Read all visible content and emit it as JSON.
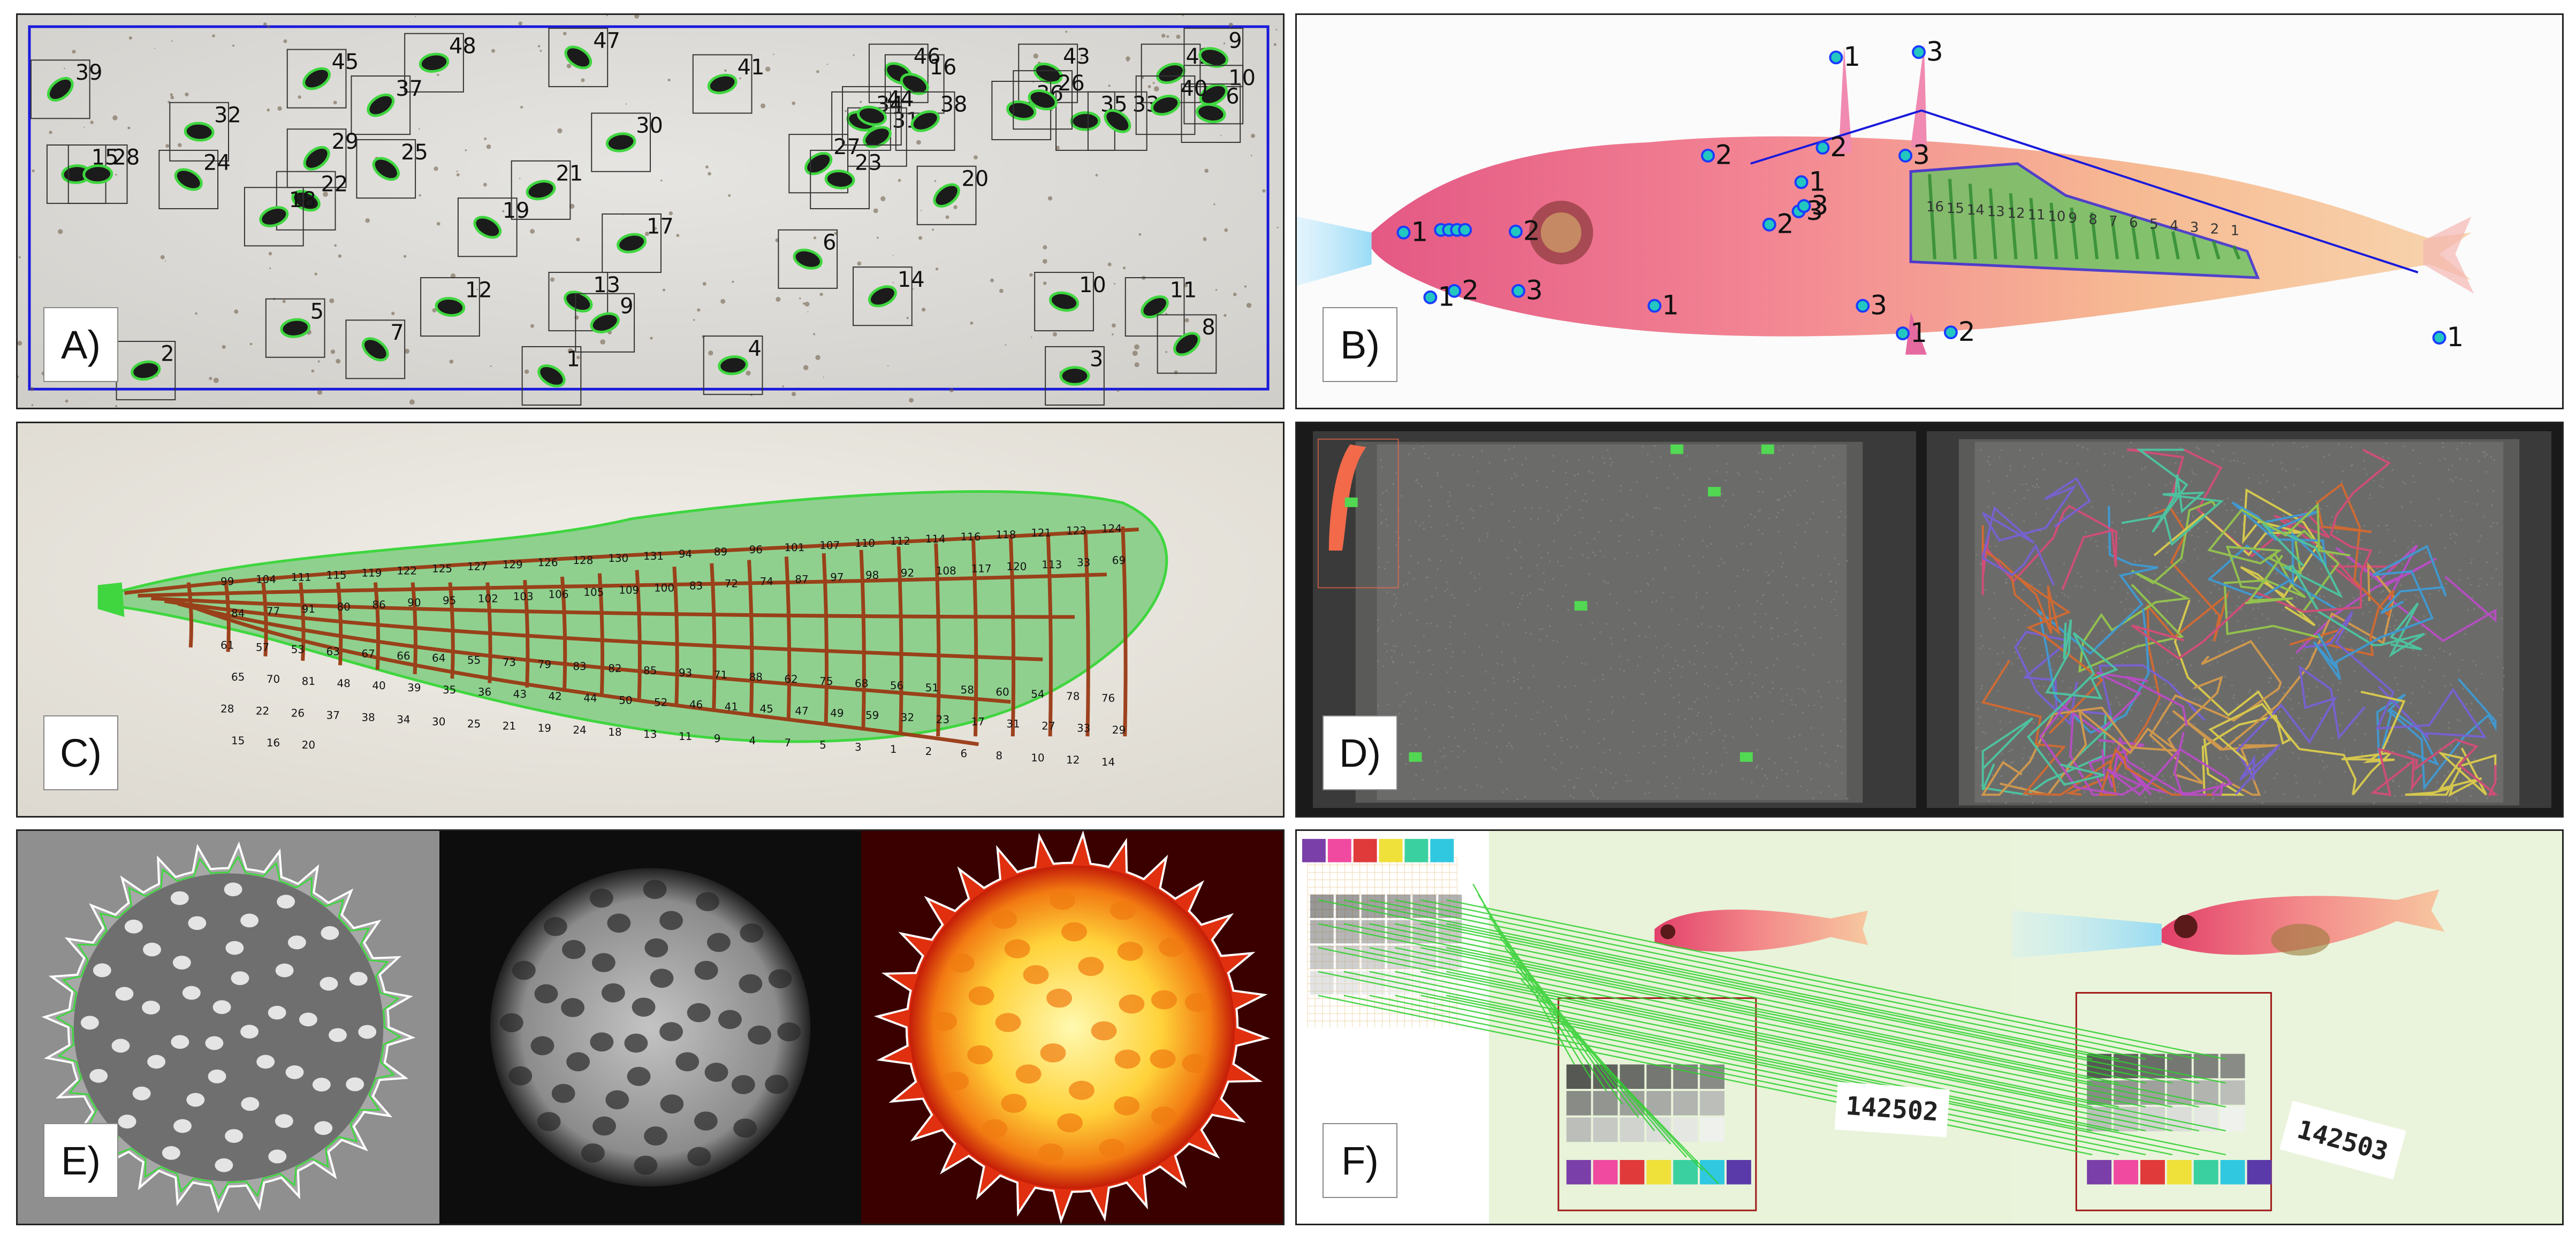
{
  "panels": {
    "A": {
      "label": "A)"
    },
    "B": {
      "label": "B)"
    },
    "C": {
      "label": "C)"
    },
    "D": {
      "label": "D)"
    },
    "E": {
      "label": "E)"
    },
    "F": {
      "label": "F)"
    }
  },
  "panel_a": {
    "ids": [
      "39",
      "15",
      "47",
      "48",
      "46",
      "41",
      "43",
      "42",
      "9",
      "10",
      "6",
      "37",
      "32",
      "29",
      "28",
      "25",
      "30",
      "24",
      "21",
      "22",
      "18",
      "34",
      "31",
      "36",
      "27",
      "23",
      "20",
      "35",
      "33",
      "5",
      "19",
      "17",
      "13",
      "9",
      "6",
      "14",
      "10",
      "11",
      "12",
      "8",
      "3",
      "7",
      "4",
      "1",
      "2",
      "16",
      "40",
      "26",
      "38",
      "44",
      "45"
    ]
  },
  "panel_b": {
    "landmarks": [
      "1",
      "3",
      "2",
      "3",
      "2",
      "3",
      "3",
      "2",
      "1",
      "2",
      "1",
      "3",
      "1",
      "2",
      "3",
      "1",
      "2",
      "1",
      "1"
    ],
    "fin_numbers": [
      "16",
      "15",
      "14",
      "13",
      "12",
      "11",
      "10",
      "9",
      "8",
      "7",
      "6",
      "5",
      "4",
      "3",
      "2",
      "1"
    ]
  },
  "panel_c": {
    "cell_numbers": [
      "99",
      "104",
      "111",
      "115",
      "119",
      "122",
      "125",
      "127",
      "129",
      "126",
      "128",
      "130",
      "131",
      "94",
      "89",
      "96",
      "101",
      "107",
      "110",
      "112",
      "114",
      "116",
      "118",
      "121",
      "123",
      "124",
      "84",
      "77",
      "91",
      "80",
      "86",
      "90",
      "95",
      "102",
      "103",
      "106",
      "105",
      "109",
      "100",
      "83",
      "72",
      "74",
      "87",
      "97",
      "98",
      "92",
      "108",
      "117",
      "120",
      "113",
      "33",
      "69",
      "61",
      "57",
      "53",
      "63",
      "67",
      "66",
      "64",
      "55",
      "73",
      "79",
      "83",
      "82",
      "85",
      "93",
      "71",
      "88",
      "62",
      "75",
      "68",
      "56",
      "51",
      "58",
      "60",
      "54",
      "78",
      "76",
      "65",
      "70",
      "81",
      "48",
      "40",
      "39",
      "35",
      "36",
      "43",
      "42",
      "44",
      "50",
      "52",
      "46",
      "41",
      "45",
      "47",
      "49",
      "59",
      "32",
      "23",
      "17",
      "31",
      "27",
      "33",
      "29",
      "28",
      "22",
      "26",
      "37",
      "38",
      "34",
      "30",
      "25",
      "21",
      "19",
      "24",
      "18",
      "13",
      "11",
      "9",
      "4",
      "7",
      "5",
      "3",
      "1",
      "2",
      "6",
      "8",
      "10",
      "12",
      "14",
      "15",
      "16",
      "20"
    ]
  },
  "panel_f": {
    "specimen_left": "142502",
    "specimen_right": "142503"
  },
  "colors": {
    "panel_border": "#222222",
    "detection_box": "#1a1adb",
    "leaf_mask": "#3fd63f",
    "landmark_blue": "#1c3cff",
    "landmark_cyan": "#22c7c0",
    "wing_fill": "#8fd08f",
    "wing_vein": "#9a3a14"
  }
}
